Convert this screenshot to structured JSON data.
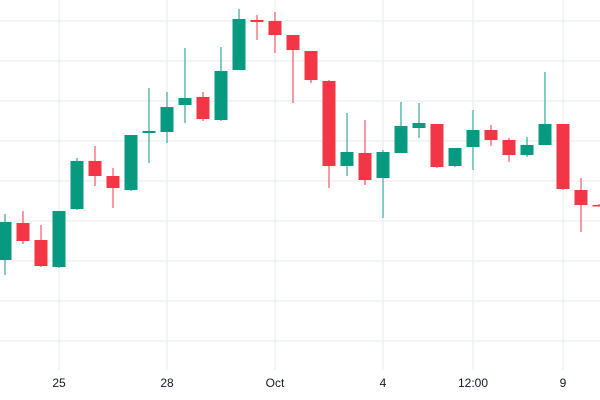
{
  "chart_data": {
    "type": "candlestick",
    "categories": [
      null,
      null,
      null,
      "25",
      null,
      null,
      null,
      null,
      null,
      "28",
      null,
      null,
      null,
      null,
      null,
      "Oct",
      null,
      null,
      null,
      null,
      null,
      "4",
      null,
      null,
      null,
      null,
      "12:00",
      null,
      null,
      null,
      null,
      "9",
      null,
      null
    ],
    "open": [
      110,
      147,
      130,
      103,
      161,
      209,
      194,
      180,
      237,
      238,
      265,
      273,
      250,
      300,
      350,
      349,
      335,
      319,
      289,
      204,
      217,
      192,
      217,
      242,
      246,
      204,
      223,
      240,
      230,
      215,
      225,
      246,
      180,
      165
    ],
    "high": [
      156,
      159,
      145,
      159,
      212,
      224,
      202,
      235,
      282,
      278,
      322,
      278,
      323,
      361,
      355,
      358,
      335,
      319,
      290,
      257,
      250,
      220,
      268,
      267,
      246,
      222,
      260,
      245,
      232,
      233,
      298,
      246,
      192,
      166
    ],
    "low": [
      95,
      126,
      103,
      102,
      160,
      184,
      162,
      179,
      207,
      227,
      247,
      249,
      249,
      300,
      330,
      317,
      267,
      287,
      182,
      194,
      185,
      152,
      217,
      232,
      202,
      203,
      200,
      224,
      208,
      213,
      225,
      180,
      138,
      164
    ],
    "close": [
      148,
      129,
      104,
      159,
      209,
      194,
      182,
      235,
      239,
      263,
      272,
      251,
      299,
      351,
      348,
      335,
      320,
      290,
      204,
      218,
      190,
      218,
      244,
      247,
      203,
      222,
      240,
      230,
      215,
      225,
      246,
      181,
      165,
      164
    ],
    "up_color": "#089981",
    "down_color": "#f23645",
    "ylim": [
      0,
      370
    ],
    "yticks": [
      29,
      69,
      109,
      149,
      189,
      229,
      269,
      309,
      349
    ],
    "grid": true
  }
}
